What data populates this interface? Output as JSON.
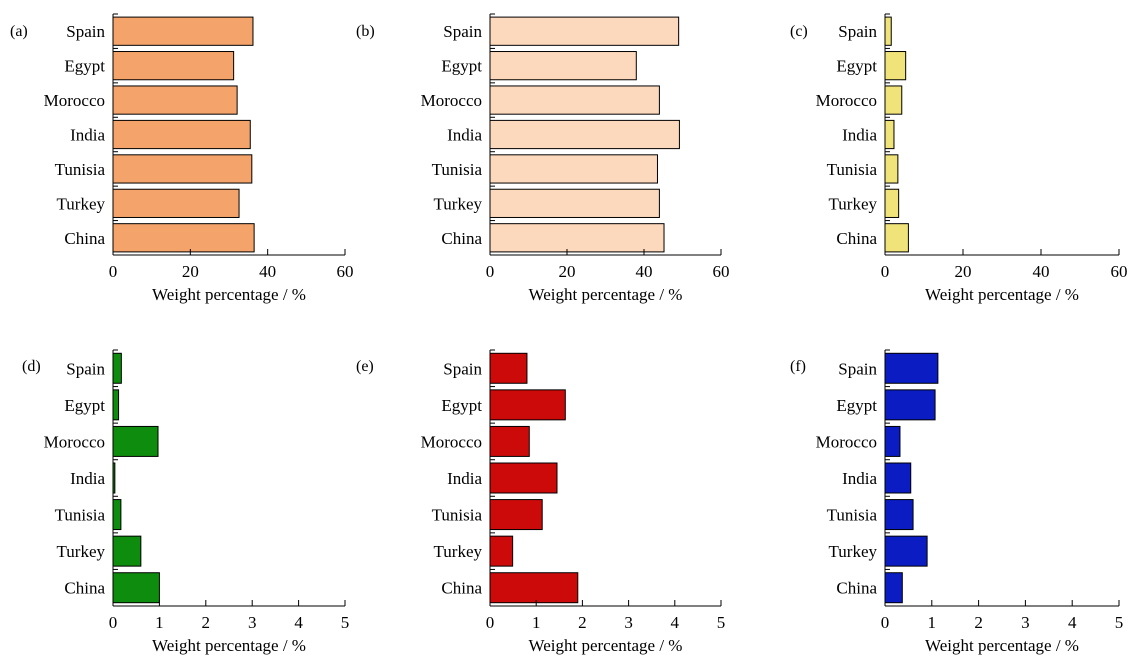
{
  "chart_data": [
    {
      "panel": "(a)",
      "type": "bar",
      "orientation": "horizontal",
      "categories": [
        "Spain",
        "Egypt",
        "Morocco",
        "India",
        "Tunisia",
        "Turkey",
        "China"
      ],
      "values": [
        36.2,
        31.2,
        32.1,
        35.5,
        35.9,
        32.6,
        36.5
      ],
      "xlabel": "Weight percentage / %",
      "xlim": [
        0,
        60
      ],
      "xticks": [
        0,
        20,
        40,
        60
      ],
      "color": "#f4a46a"
    },
    {
      "panel": "(b)",
      "type": "bar",
      "orientation": "horizontal",
      "categories": [
        "Spain",
        "Egypt",
        "Morocco",
        "India",
        "Tunisia",
        "Turkey",
        "China"
      ],
      "values": [
        49.0,
        38.0,
        44.0,
        49.2,
        43.5,
        44.0,
        45.2
      ],
      "xlabel": "Weight percentage / %",
      "xlim": [
        0,
        60
      ],
      "xticks": [
        0,
        20,
        40,
        60
      ],
      "color": "#fcd8bc"
    },
    {
      "panel": "(c)",
      "type": "bar",
      "orientation": "horizontal",
      "categories": [
        "Spain",
        "Egypt",
        "Morocco",
        "India",
        "Tunisia",
        "Turkey",
        "China"
      ],
      "values": [
        1.6,
        5.3,
        4.3,
        2.3,
        3.3,
        3.5,
        6.0
      ],
      "xlabel": "Weight percentage / %",
      "xlim": [
        0,
        60
      ],
      "xticks": [
        0,
        20,
        40,
        60
      ],
      "color": "#efe37a"
    },
    {
      "panel": "(d)",
      "type": "bar",
      "orientation": "horizontal",
      "categories": [
        "Spain",
        "Egypt",
        "Morocco",
        "India",
        "Tunisia",
        "Turkey",
        "China"
      ],
      "values": [
        0.18,
        0.12,
        0.97,
        0.04,
        0.17,
        0.6,
        1.0
      ],
      "xlabel": "Weight percentage / %",
      "xlim": [
        0,
        5
      ],
      "xticks": [
        0,
        1,
        2,
        3,
        4,
        5
      ],
      "color": "#0e8c0e"
    },
    {
      "panel": "(e)",
      "type": "bar",
      "orientation": "horizontal",
      "categories": [
        "Spain",
        "Egypt",
        "Morocco",
        "India",
        "Tunisia",
        "Turkey",
        "China"
      ],
      "values": [
        0.8,
        1.63,
        0.85,
        1.45,
        1.13,
        0.49,
        1.9
      ],
      "xlabel": "Weight percentage / %",
      "xlim": [
        0,
        5
      ],
      "xticks": [
        0,
        1,
        2,
        3,
        4,
        5
      ],
      "color": "#cc0a0a"
    },
    {
      "panel": "(f)",
      "type": "bar",
      "orientation": "horizontal",
      "categories": [
        "Spain",
        "Egypt",
        "Morocco",
        "India",
        "Tunisia",
        "Turkey",
        "China"
      ],
      "values": [
        1.13,
        1.07,
        0.32,
        0.55,
        0.6,
        0.9,
        0.37
      ],
      "xlabel": "Weight percentage / %",
      "xlim": [
        0,
        5
      ],
      "xticks": [
        0,
        1,
        2,
        3,
        4,
        5
      ],
      "color": "#0a1cc2"
    }
  ]
}
